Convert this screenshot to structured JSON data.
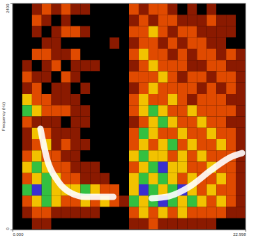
{
  "chart_data": {
    "type": "heatmap",
    "y_label": "Frequency (Hz)",
    "xlim": [
      0,
      22.998
    ],
    "xticks": [
      {
        "value": 0,
        "label": "0.000"
      },
      {
        "value": 22.998,
        "label": "22.998"
      }
    ],
    "ylim": [
      0,
      2400
    ],
    "yticks": [
      0,
      2400
    ],
    "cells": [
      [
        0,
        0,
        1,
        2,
        1,
        2,
        1,
        1,
        0,
        0,
        0,
        0,
        2,
        1,
        2,
        2,
        1,
        0,
        1,
        0,
        1,
        0,
        0,
        0
      ],
      [
        0,
        0,
        2,
        1,
        0,
        1,
        0,
        0,
        0,
        0,
        0,
        0,
        1,
        2,
        1,
        2,
        2,
        1,
        1,
        1,
        2,
        1,
        1,
        0
      ],
      [
        0,
        0,
        1,
        0,
        1,
        2,
        2,
        1,
        0,
        0,
        0,
        0,
        2,
        2,
        3,
        2,
        1,
        2,
        2,
        1,
        1,
        1,
        1,
        0
      ],
      [
        0,
        0,
        0,
        1,
        1,
        0,
        0,
        0,
        0,
        0,
        1,
        0,
        1,
        2,
        2,
        1,
        2,
        1,
        2,
        2,
        1,
        1,
        0,
        0
      ],
      [
        0,
        0,
        2,
        2,
        1,
        1,
        2,
        0,
        0,
        0,
        0,
        0,
        2,
        3,
        2,
        2,
        1,
        2,
        1,
        2,
        2,
        1,
        2,
        1
      ],
      [
        0,
        1,
        0,
        1,
        2,
        0,
        1,
        1,
        1,
        0,
        0,
        0,
        1,
        2,
        3,
        2,
        2,
        2,
        1,
        1,
        2,
        2,
        1,
        1
      ],
      [
        0,
        2,
        1,
        1,
        0,
        2,
        1,
        0,
        0,
        0,
        0,
        0,
        2,
        2,
        2,
        3,
        2,
        1,
        2,
        2,
        1,
        2,
        2,
        1
      ],
      [
        0,
        1,
        2,
        0,
        1,
        1,
        0,
        1,
        0,
        0,
        0,
        0,
        1,
        2,
        3,
        2,
        2,
        2,
        2,
        1,
        2,
        1,
        2,
        1
      ],
      [
        0,
        3,
        2,
        2,
        1,
        1,
        1,
        0,
        0,
        0,
        0,
        0,
        2,
        3,
        2,
        2,
        3,
        2,
        1,
        2,
        2,
        2,
        1,
        1
      ],
      [
        0,
        4,
        3,
        2,
        2,
        2,
        1,
        1,
        0,
        0,
        0,
        0,
        2,
        3,
        4,
        3,
        2,
        2,
        3,
        2,
        2,
        2,
        2,
        1
      ],
      [
        0,
        2,
        1,
        1,
        1,
        0,
        1,
        1,
        0,
        0,
        0,
        0,
        1,
        2,
        3,
        4,
        3,
        2,
        2,
        3,
        2,
        2,
        1,
        1
      ],
      [
        0,
        1,
        3,
        2,
        1,
        1,
        1,
        0,
        0,
        0,
        0,
        0,
        2,
        4,
        3,
        2,
        2,
        3,
        2,
        2,
        3,
        2,
        2,
        1
      ],
      [
        0,
        1,
        2,
        3,
        1,
        2,
        1,
        1,
        0,
        0,
        0,
        0,
        2,
        3,
        2,
        3,
        4,
        2,
        3,
        2,
        2,
        3,
        2,
        1
      ],
      [
        0,
        2,
        3,
        2,
        2,
        1,
        1,
        0,
        0,
        0,
        0,
        0,
        3,
        4,
        3,
        3,
        2,
        3,
        2,
        3,
        2,
        2,
        2,
        1
      ],
      [
        0,
        3,
        4,
        3,
        2,
        2,
        1,
        1,
        1,
        0,
        0,
        0,
        2,
        3,
        4,
        5,
        3,
        3,
        2,
        2,
        3,
        2,
        2,
        1
      ],
      [
        0,
        2,
        3,
        4,
        3,
        2,
        2,
        1,
        1,
        1,
        0,
        0,
        3,
        4,
        3,
        4,
        3,
        2,
        3,
        2,
        2,
        3,
        2,
        1
      ],
      [
        0,
        4,
        5,
        4,
        3,
        3,
        3,
        4,
        3,
        2,
        2,
        0,
        3,
        5,
        4,
        3,
        4,
        5,
        3,
        2,
        3,
        2,
        2,
        1
      ],
      [
        0,
        2,
        3,
        4,
        3,
        2,
        2,
        3,
        2,
        3,
        2,
        1,
        4,
        3,
        4,
        5,
        4,
        3,
        4,
        3,
        2,
        3,
        2,
        1
      ],
      [
        0,
        1,
        2,
        2,
        1,
        1,
        1,
        1,
        1,
        0,
        0,
        0,
        2,
        3,
        2,
        3,
        2,
        3,
        2,
        2,
        2,
        2,
        1,
        1
      ],
      [
        0,
        0,
        1,
        1,
        0,
        0,
        0,
        0,
        0,
        0,
        0,
        0,
        1,
        1,
        2,
        1,
        1,
        1,
        1,
        1,
        1,
        0,
        0,
        0
      ]
    ],
    "series": [
      {
        "type": "line",
        "color": "#ffffff",
        "x": [
          2.75,
          3.43,
          4.46,
          5.84,
          7.21,
          9.95
        ],
        "values": [
          1071,
          738,
          517,
          384,
          347,
          347
        ]
      },
      {
        "type": "line",
        "color": "#ffffff",
        "x": [
          13.73,
          15.45,
          17.51,
          19.57,
          21.63,
          22.66
        ],
        "values": [
          332,
          354,
          458,
          628,
          775,
          812
        ]
      }
    ]
  }
}
